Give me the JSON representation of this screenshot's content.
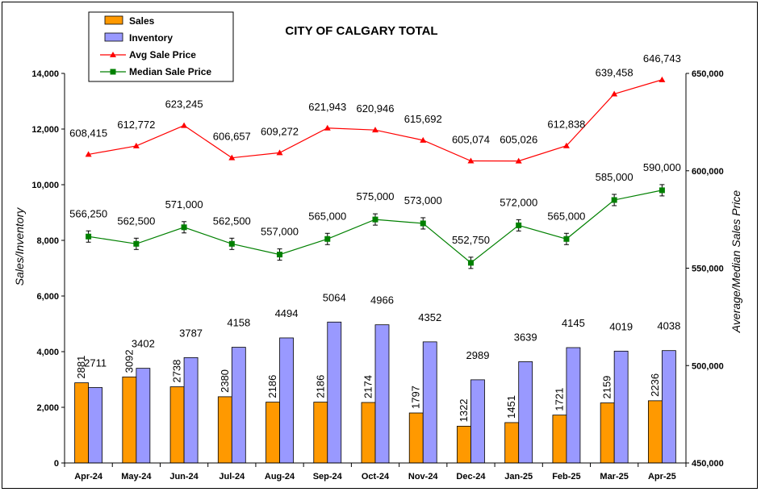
{
  "chart_data": {
    "type": "bar",
    "title": "CITY OF CALGARY TOTAL",
    "categories": [
      "Apr-24",
      "May-24",
      "Jun-24",
      "Jul-24",
      "Aug-24",
      "Sep-24",
      "Oct-24",
      "Nov-24",
      "Dec-24",
      "Jan-25",
      "Feb-25",
      "Mar-25",
      "Apr-25"
    ],
    "ylabel": "Sales/Inventory",
    "y2label": "Average/Median Sales Price",
    "ylim": [
      0,
      14000
    ],
    "y2lim": [
      450000,
      650000
    ],
    "yticks": [
      "0",
      "2,000",
      "4,000",
      "6,000",
      "8,000",
      "10,000",
      "12,000",
      "14,000"
    ],
    "y2ticks": [
      "450,000",
      "500,000",
      "550,000",
      "600,000",
      "650,000"
    ],
    "legend_position": "top-left",
    "series": [
      {
        "name": "Sales",
        "type": "bar",
        "axis": "left",
        "color": "#FF9900",
        "values": [
          2881,
          3092,
          2738,
          2380,
          2186,
          2186,
          2174,
          1797,
          1322,
          1451,
          1721,
          2159,
          2236
        ],
        "labels": [
          "2881",
          "3092",
          "2738",
          "2380",
          "2186",
          "2186",
          "2174",
          "1797",
          "1322",
          "1451",
          "1721",
          "2159",
          "2236"
        ]
      },
      {
        "name": "Inventory",
        "type": "bar",
        "axis": "left",
        "color": "#9999FF",
        "values": [
          2711,
          3402,
          3787,
          4158,
          4494,
          5064,
          4966,
          4352,
          2989,
          3639,
          4145,
          4019,
          4038
        ],
        "labels": [
          "2711",
          "3402",
          "3787",
          "4158",
          "4494",
          "5064",
          "4966",
          "4352",
          "2989",
          "3639",
          "4145",
          "4019",
          "4038"
        ]
      },
      {
        "name": "Avg Sale Price",
        "type": "line",
        "axis": "right",
        "color": "#FF0000",
        "marker": "triangle",
        "values": [
          608415,
          612772,
          623245,
          606657,
          609272,
          621943,
          620946,
          615692,
          605074,
          605026,
          612838,
          639458,
          646743
        ],
        "labels": [
          "608,415",
          "612,772",
          "623,245",
          "606,657",
          "609,272",
          "621,943",
          "620,946",
          "615,692",
          "605,074",
          "605,026",
          "612,838",
          "639,458",
          "646,743"
        ]
      },
      {
        "name": "Median Sale Price",
        "type": "line",
        "axis": "right",
        "color": "#008000",
        "marker": "square",
        "values": [
          566250,
          562500,
          571000,
          562500,
          557000,
          565000,
          575000,
          573000,
          552750,
          572000,
          565000,
          585000,
          590000
        ],
        "labels": [
          "566,250",
          "562,500",
          "571,000",
          "562,500",
          "557,000",
          "565,000",
          "575,000",
          "573,000",
          "552,750",
          "572,000",
          "565,000",
          "585,000",
          "590,000"
        ]
      }
    ]
  }
}
